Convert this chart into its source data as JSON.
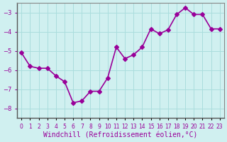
{
  "x": [
    0,
    1,
    2,
    3,
    4,
    5,
    6,
    7,
    8,
    9,
    10,
    11,
    12,
    13,
    14,
    15,
    16,
    17,
    18,
    19,
    20,
    21,
    22,
    23
  ],
  "y": [
    -5.1,
    -5.8,
    -5.9,
    -5.9,
    -6.3,
    -6.6,
    -7.7,
    -7.6,
    -7.1,
    -7.1,
    -6.4,
    -4.8,
    -5.4,
    -5.2,
    -4.8,
    -3.85,
    -4.1,
    -3.9,
    -3.1,
    -2.75,
    -3.1,
    -3.1,
    -3.85,
    -3.85
  ],
  "line_color": "#990099",
  "marker": "D",
  "markersize": 3,
  "linewidth": 1.2,
  "xlabel": "Windchill (Refroidissement éolien,°C)",
  "xlabel_fontsize": 7,
  "ylabel_ticks": [
    -8,
    -7,
    -6,
    -5,
    -4,
    -3
  ],
  "xtick_labels": [
    "0",
    "1",
    "2",
    "3",
    "4",
    "5",
    "6",
    "7",
    "8",
    "9",
    "10",
    "11",
    "12",
    "13",
    "14",
    "15",
    "16",
    "17",
    "18",
    "19",
    "20",
    "21",
    "22",
    "23"
  ],
  "xlim": [
    -0.5,
    23.5
  ],
  "ylim": [
    -8.5,
    -2.5
  ],
  "bg_color": "#d0f0f0",
  "grid_color": "#aadddd",
  "tick_color": "#990099",
  "tick_fontsize": 6
}
